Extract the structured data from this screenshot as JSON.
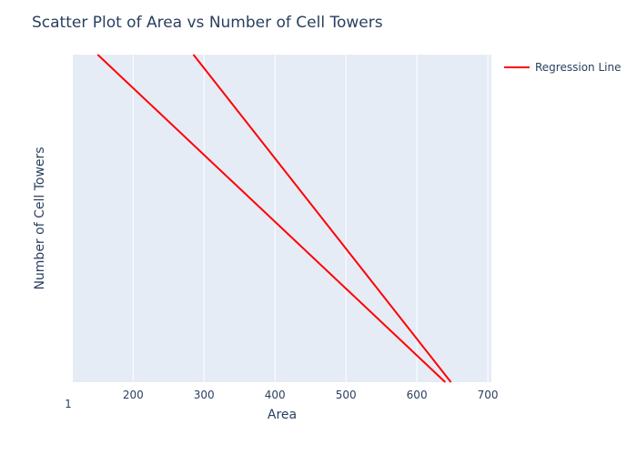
{
  "chart_data": {
    "type": "line",
    "title": "Scatter Plot of Area vs Number of Cell Towers",
    "xlabel": "Area",
    "ylabel": "Number of Cell Towers",
    "xlim": [
      115,
      705
    ],
    "ylim": [
      0,
      1
    ],
    "x_ticks": [
      200,
      300,
      400,
      500,
      600,
      700
    ],
    "y_tick_label": "1",
    "grid": true,
    "legend_placement": "top-right",
    "colors": {
      "plot_bg": "#e5ecf6",
      "line": "#ff0000",
      "grid": "#ffffff",
      "text": "#2a3f5f"
    },
    "series": [
      {
        "name": "Regression Line",
        "segments": [
          [
            [
              150,
              1
            ],
            [
              640,
              0
            ]
          ],
          [
            [
              285,
              1
            ],
            [
              648,
              0
            ]
          ]
        ]
      }
    ]
  }
}
